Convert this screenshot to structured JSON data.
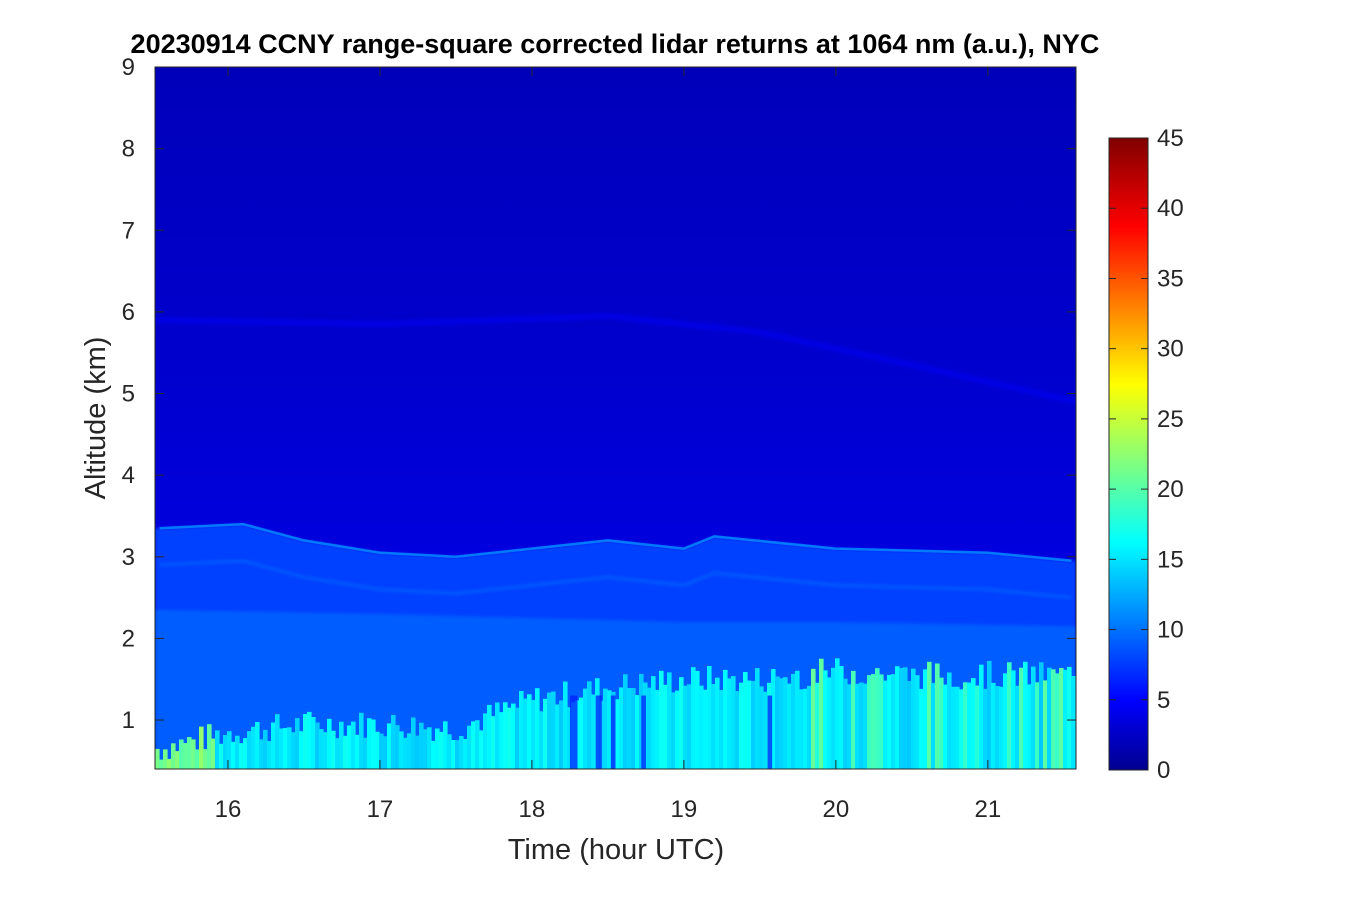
{
  "chart_data": {
    "type": "heatmap",
    "title": "20230914 CCNY range-square corrected lidar returns at 1064 nm (a.u.), NYC",
    "xlabel": "Time (hour UTC)",
    "ylabel": "Altitude (km)",
    "xlim": [
      15.52,
      21.58
    ],
    "ylim": [
      0.4,
      9
    ],
    "xticks": [
      16,
      17,
      18,
      19,
      20,
      21
    ],
    "yticks": [
      1,
      2,
      3,
      4,
      5,
      6,
      7,
      8,
      9
    ],
    "colorbar": {
      "colormap": "jet",
      "range": [
        0,
        45
      ],
      "ticks": [
        0,
        5,
        10,
        15,
        20,
        25,
        30,
        35,
        40,
        45
      ]
    },
    "field_description": {
      "boundary_layer_top_km": [
        {
          "time": 15.55,
          "alt": 0.65
        },
        {
          "time": 16.0,
          "alt": 0.85
        },
        {
          "time": 16.5,
          "alt": 0.95
        },
        {
          "time": 17.0,
          "alt": 0.95
        },
        {
          "time": 17.5,
          "alt": 0.9
        },
        {
          "time": 18.0,
          "alt": 1.25
        },
        {
          "time": 18.5,
          "alt": 1.4
        },
        {
          "time": 19.0,
          "alt": 1.5
        },
        {
          "time": 19.5,
          "alt": 1.5
        },
        {
          "time": 20.0,
          "alt": 1.6
        },
        {
          "time": 20.5,
          "alt": 1.55
        },
        {
          "time": 21.0,
          "alt": 1.55
        },
        {
          "time": 21.55,
          "alt": 1.55
        }
      ],
      "aerosol_layer_top_km": [
        {
          "time": 15.55,
          "alt": 3.35
        },
        {
          "time": 16.1,
          "alt": 3.4
        },
        {
          "time": 16.5,
          "alt": 3.2
        },
        {
          "time": 17.0,
          "alt": 3.05
        },
        {
          "time": 17.5,
          "alt": 3.0
        },
        {
          "time": 18.0,
          "alt": 3.1
        },
        {
          "time": 18.5,
          "alt": 3.2
        },
        {
          "time": 19.0,
          "alt": 3.1
        },
        {
          "time": 19.2,
          "alt": 3.25
        },
        {
          "time": 20.0,
          "alt": 3.1
        },
        {
          "time": 21.0,
          "alt": 3.05
        },
        {
          "time": 21.55,
          "alt": 2.95
        }
      ],
      "boundary_layer_value": 16,
      "residual_layer_value": 10,
      "free_troposphere_value": 3.5
    }
  }
}
